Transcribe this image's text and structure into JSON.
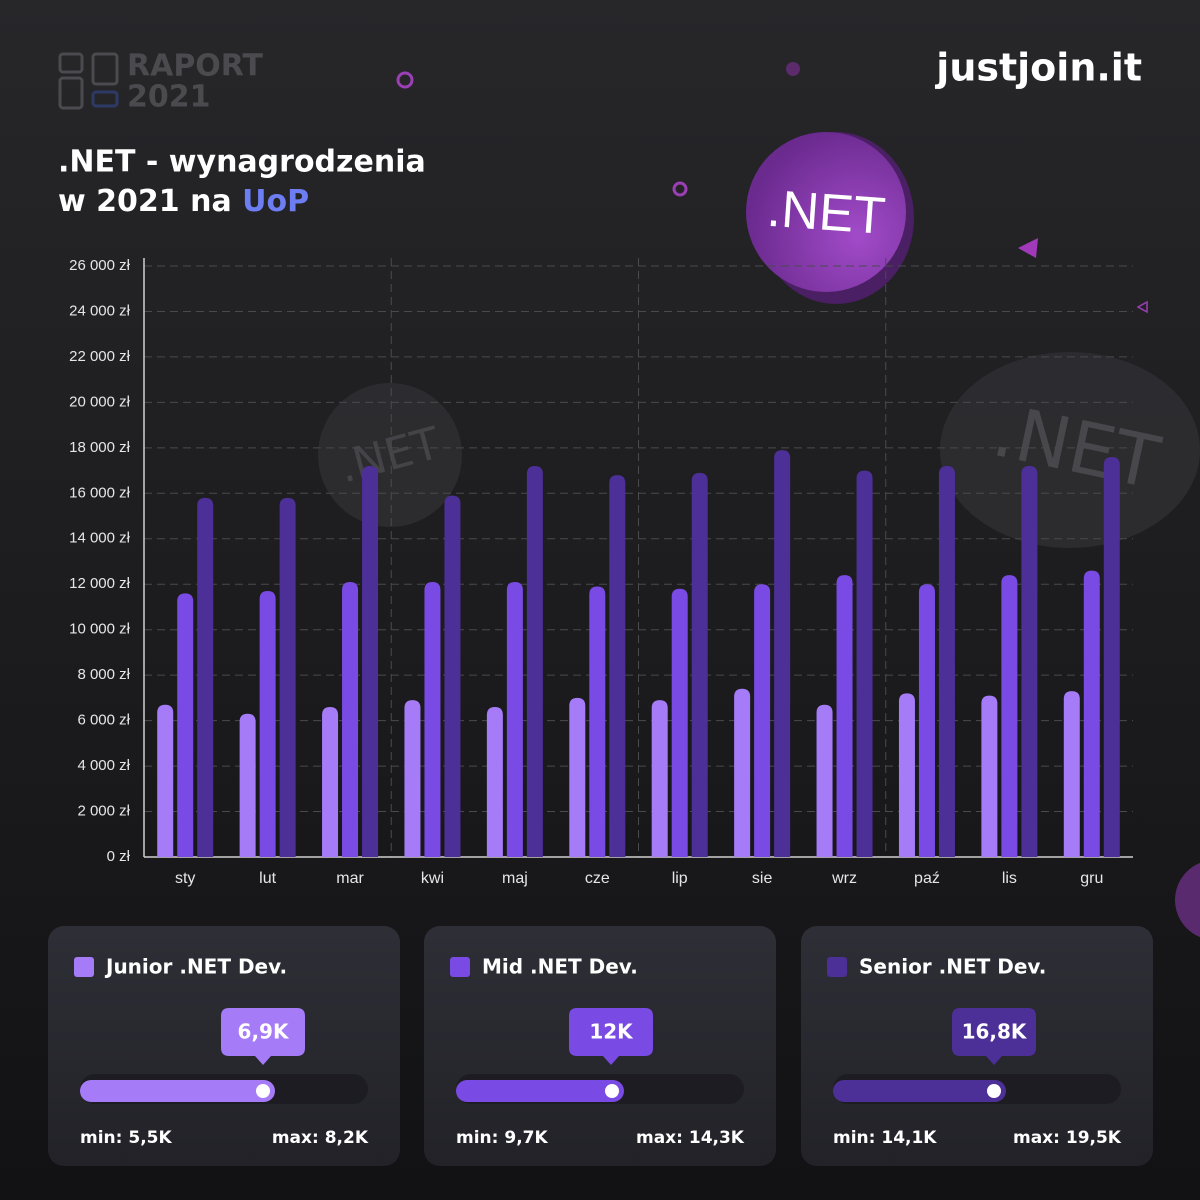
{
  "header": {
    "report": "RAPORT",
    "year": "2021",
    "brand": "justjoin.it",
    "title_line1": ".NET - wynagrodzenia",
    "title_line2": "w 2021 na",
    "title_highlight": "UoP",
    "badge": ".NET"
  },
  "chart_data": {
    "type": "bar",
    "categories": [
      "sty",
      "lut",
      "mar",
      "kwi",
      "maj",
      "cze",
      "lip",
      "sie",
      "wrz",
      "paź",
      "lis",
      "gru"
    ],
    "series": [
      {
        "name": "Junior .NET Dev.",
        "color": "#a57bf7",
        "values": [
          6700,
          6300,
          6600,
          6900,
          6600,
          7000,
          6900,
          7400,
          6700,
          7200,
          7100,
          7300
        ]
      },
      {
        "name": "Mid .NET Dev.",
        "color": "#7a4ae4",
        "values": [
          11600,
          11700,
          12100,
          12100,
          12100,
          11900,
          11800,
          12000,
          12400,
          12000,
          12400,
          12600
        ]
      },
      {
        "name": "Senior .NET Dev.",
        "color": "#4d2f98",
        "values": [
          15800,
          15800,
          17200,
          15900,
          17200,
          16800,
          16900,
          17900,
          17000,
          17200,
          17200,
          17600
        ]
      }
    ],
    "ylim": [
      0,
      26000
    ],
    "yticks": [
      {
        "value": 0,
        "label": "0 zł"
      },
      {
        "value": 2000,
        "label": "2 000 zł"
      },
      {
        "value": 4000,
        "label": "4 000 zł"
      },
      {
        "value": 6000,
        "label": "6 000 zł"
      },
      {
        "value": 8000,
        "label": "8 000 zł"
      },
      {
        "value": 10000,
        "label": "10 000 zł"
      },
      {
        "value": 12000,
        "label": "12 000 zł"
      },
      {
        "value": 14000,
        "label": "14 000 zł"
      },
      {
        "value": 16000,
        "label": "16 000 zł"
      },
      {
        "value": 18000,
        "label": "18 000 zł"
      },
      {
        "value": 20000,
        "label": "20 000 zł"
      },
      {
        "value": 22000,
        "label": "22 000 zł"
      },
      {
        "value": 24000,
        "label": "24 000 zł"
      },
      {
        "value": 26000,
        "label": "26 000 zł"
      }
    ],
    "grid": true
  },
  "cards": [
    {
      "value": "6,9K",
      "min": "min: 5,5K",
      "max": "max: 8,2K"
    },
    {
      "value": "12K",
      "min": "min: 9,7K",
      "max": "max: 14,3K"
    },
    {
      "value": "16,8K",
      "min": "min: 14,1K",
      "max": "max: 19,5K"
    }
  ]
}
